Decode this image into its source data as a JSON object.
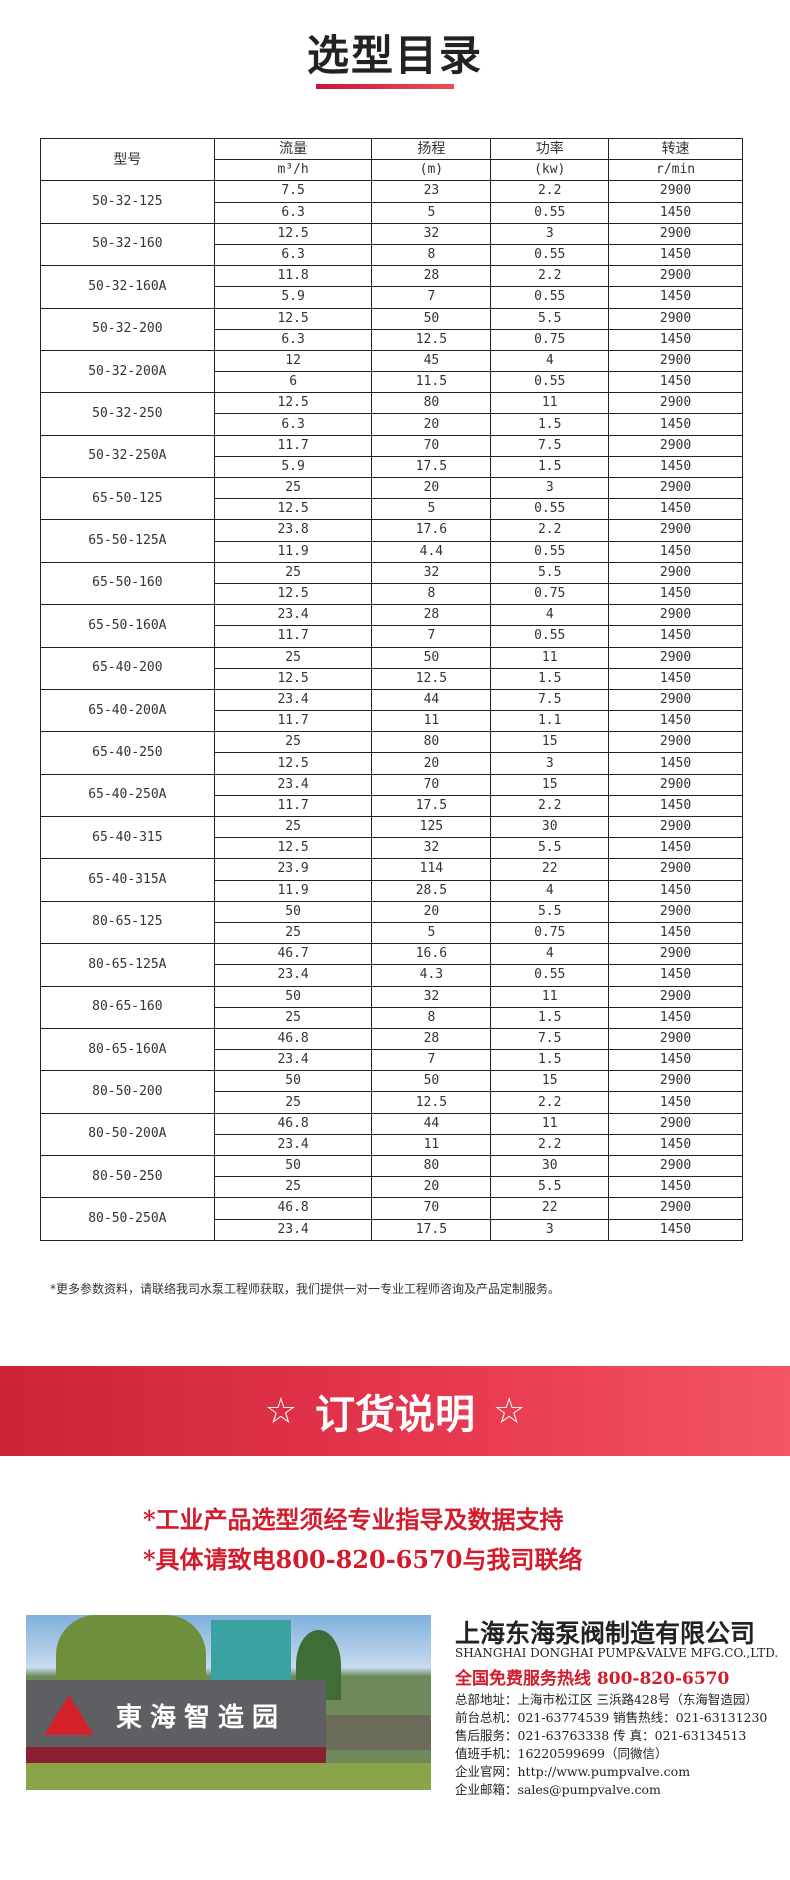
{
  "title": "选型目录",
  "table": {
    "headers": {
      "model": "型号",
      "flow": "流量",
      "head": "扬程",
      "power": "功率",
      "speed": "转速"
    },
    "units": {
      "flow": "m³/h",
      "head": "(m)",
      "power": "(kw)",
      "speed": "r/min"
    },
    "rows": [
      {
        "model": "50-32-125",
        "r": [
          [
            "7.5",
            "23",
            "2.2",
            "2900"
          ],
          [
            "6.3",
            "5",
            "0.55",
            "1450"
          ]
        ]
      },
      {
        "model": "50-32-160",
        "r": [
          [
            "12.5",
            "32",
            "3",
            "2900"
          ],
          [
            "6.3",
            "8",
            "0.55",
            "1450"
          ]
        ]
      },
      {
        "model": "50-32-160A",
        "r": [
          [
            "11.8",
            "28",
            "2.2",
            "2900"
          ],
          [
            "5.9",
            "7",
            "0.55",
            "1450"
          ]
        ]
      },
      {
        "model": "50-32-200",
        "r": [
          [
            "12.5",
            "50",
            "5.5",
            "2900"
          ],
          [
            "6.3",
            "12.5",
            "0.75",
            "1450"
          ]
        ]
      },
      {
        "model": "50-32-200A",
        "r": [
          [
            "12",
            "45",
            "4",
            "2900"
          ],
          [
            "6",
            "11.5",
            "0.55",
            "1450"
          ]
        ]
      },
      {
        "model": "50-32-250",
        "r": [
          [
            "12.5",
            "80",
            "11",
            "2900"
          ],
          [
            "6.3",
            "20",
            "1.5",
            "1450"
          ]
        ]
      },
      {
        "model": "50-32-250A",
        "r": [
          [
            "11.7",
            "70",
            "7.5",
            "2900"
          ],
          [
            "5.9",
            "17.5",
            "1.5",
            "1450"
          ]
        ]
      },
      {
        "model": "65-50-125",
        "r": [
          [
            "25",
            "20",
            "3",
            "2900"
          ],
          [
            "12.5",
            "5",
            "0.55",
            "1450"
          ]
        ]
      },
      {
        "model": "65-50-125A",
        "r": [
          [
            "23.8",
            "17.6",
            "2.2",
            "2900"
          ],
          [
            "11.9",
            "4.4",
            "0.55",
            "1450"
          ]
        ]
      },
      {
        "model": "65-50-160",
        "r": [
          [
            "25",
            "32",
            "5.5",
            "2900"
          ],
          [
            "12.5",
            "8",
            "0.75",
            "1450"
          ]
        ]
      },
      {
        "model": "65-50-160A",
        "r": [
          [
            "23.4",
            "28",
            "4",
            "2900"
          ],
          [
            "11.7",
            "7",
            "0.55",
            "1450"
          ]
        ]
      },
      {
        "model": "65-40-200",
        "r": [
          [
            "25",
            "50",
            "11",
            "2900"
          ],
          [
            "12.5",
            "12.5",
            "1.5",
            "1450"
          ]
        ]
      },
      {
        "model": "65-40-200A",
        "r": [
          [
            "23.4",
            "44",
            "7.5",
            "2900"
          ],
          [
            "11.7",
            "11",
            "1.1",
            "1450"
          ]
        ]
      },
      {
        "model": "65-40-250",
        "r": [
          [
            "25",
            "80",
            "15",
            "2900"
          ],
          [
            "12.5",
            "20",
            "3",
            "1450"
          ]
        ]
      },
      {
        "model": "65-40-250A",
        "r": [
          [
            "23.4",
            "70",
            "15",
            "2900"
          ],
          [
            "11.7",
            "17.5",
            "2.2",
            "1450"
          ]
        ]
      },
      {
        "model": "65-40-315",
        "r": [
          [
            "25",
            "125",
            "30",
            "2900"
          ],
          [
            "12.5",
            "32",
            "5.5",
            "1450"
          ]
        ]
      },
      {
        "model": "65-40-315A",
        "r": [
          [
            "23.9",
            "114",
            "22",
            "2900"
          ],
          [
            "11.9",
            "28.5",
            "4",
            "1450"
          ]
        ]
      },
      {
        "model": "80-65-125",
        "r": [
          [
            "50",
            "20",
            "5.5",
            "2900"
          ],
          [
            "25",
            "5",
            "0.75",
            "1450"
          ]
        ]
      },
      {
        "model": "80-65-125A",
        "r": [
          [
            "46.7",
            "16.6",
            "4",
            "2900"
          ],
          [
            "23.4",
            "4.3",
            "0.55",
            "1450"
          ]
        ]
      },
      {
        "model": "80-65-160",
        "r": [
          [
            "50",
            "32",
            "11",
            "2900"
          ],
          [
            "25",
            "8",
            "1.5",
            "1450"
          ]
        ]
      },
      {
        "model": "80-65-160A",
        "r": [
          [
            "46.8",
            "28",
            "7.5",
            "2900"
          ],
          [
            "23.4",
            "7",
            "1.5",
            "1450"
          ]
        ]
      },
      {
        "model": "80-50-200",
        "r": [
          [
            "50",
            "50",
            "15",
            "2900"
          ],
          [
            "25",
            "12.5",
            "2.2",
            "1450"
          ]
        ]
      },
      {
        "model": "80-50-200A",
        "r": [
          [
            "46.8",
            "44",
            "11",
            "2900"
          ],
          [
            "23.4",
            "11",
            "2.2",
            "1450"
          ]
        ]
      },
      {
        "model": "80-50-250",
        "r": [
          [
            "50",
            "80",
            "30",
            "2900"
          ],
          [
            "25",
            "20",
            "5.5",
            "1450"
          ]
        ]
      },
      {
        "model": "80-50-250A",
        "r": [
          [
            "46.8",
            "70",
            "22",
            "2900"
          ],
          [
            "23.4",
            "17.5",
            "3",
            "1450"
          ]
        ]
      }
    ]
  },
  "note": "*更多参数资料，请联络我司水泵工程师获取，我们提供一对一专业工程师咨询及产品定制服务。",
  "banner": {
    "title": "订货说明",
    "star": "☆"
  },
  "order_lines": [
    "*工业产品选型须经专业指导及数据支持",
    "*具体请致电800-820-6570与我司联络"
  ],
  "photo": {
    "sign_text": "東海智造园"
  },
  "company": {
    "name_cn": "上海东海泵阀制造有限公司",
    "name_en": "SHANGHAI DONGHAI PUMP&VALVE MFG.CO.,LTD.",
    "hotline": "全国免费服务热线  800-820-6570",
    "lines": [
      "总部地址：上海市松江区 三浜路428号（东海智造园）",
      "前台总机：021-63774539   销售热线：021-63131230",
      "售后服务：021-63763338   传      真：021-63134513",
      "值班手机：16220599699（同微信）",
      "企业官网：http://www.pumpvalve.com",
      "企业邮箱：sales@pumpvalve.com"
    ]
  },
  "colors": {
    "accent": "#d21c2c",
    "banner": "#e03248"
  }
}
